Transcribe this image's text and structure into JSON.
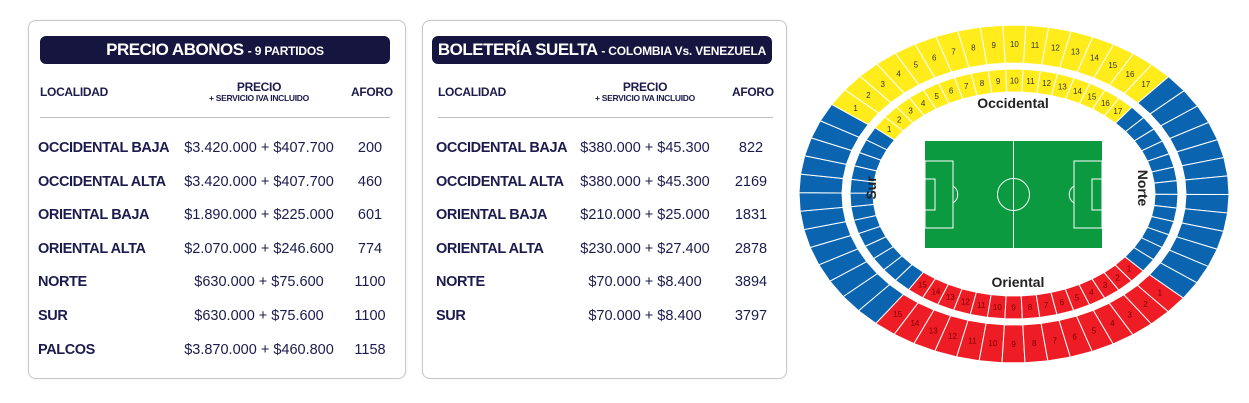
{
  "abonos": {
    "title": "PRECIO ABONOS",
    "subtitle": "- 9 PARTIDOS",
    "headers": {
      "localidad": "LOCALIDAD",
      "precio": "PRECIO",
      "precio_note": "+ SERVICIO IVA INCLUIDO",
      "aforo": "AFORO"
    },
    "rows": [
      {
        "localidad": "OCCIDENTAL BAJA",
        "precio": "$3.420.000",
        "plus": "+",
        "servicio": "$407.700",
        "aforo": "200"
      },
      {
        "localidad": "OCCIDENTAL ALTA",
        "precio": "$3.420.000",
        "plus": "+",
        "servicio": "$407.700",
        "aforo": "460"
      },
      {
        "localidad": "ORIENTAL BAJA",
        "precio": "$1.890.000",
        "plus": "+",
        "servicio": "$225.000",
        "aforo": "601"
      },
      {
        "localidad": "ORIENTAL ALTA",
        "precio": "$2.070.000",
        "plus": "+",
        "servicio": "$246.600",
        "aforo": "774"
      },
      {
        "localidad": "NORTE",
        "precio": "$630.000",
        "plus": "+",
        "servicio": "$75.600",
        "aforo": "1100"
      },
      {
        "localidad": "SUR",
        "precio": "$630.000",
        "plus": "+",
        "servicio": "$75.600",
        "aforo": "1100"
      },
      {
        "localidad": "PALCOS",
        "precio": "$3.870.000",
        "plus": "+",
        "servicio": "$460.800",
        "aforo": "1158"
      }
    ]
  },
  "suelta": {
    "title": "BOLETERÍA SUELTA",
    "subtitle": "- COLOMBIA Vs. VENEZUELA",
    "headers": {
      "localidad": "LOCALIDAD",
      "precio": "PRECIO",
      "precio_note": "+ SERVICIO IVA INCLUIDO",
      "aforo": "AFORO"
    },
    "rows": [
      {
        "localidad": "OCCIDENTAL BAJA",
        "precio": "$380.000",
        "plus": "+",
        "servicio": "$45.300",
        "aforo": "822"
      },
      {
        "localidad": "OCCIDENTAL ALTA",
        "precio": "$380.000",
        "plus": "+",
        "servicio": "$45.300",
        "aforo": "2169"
      },
      {
        "localidad": "ORIENTAL BAJA",
        "precio": "$210.000",
        "plus": "+",
        "servicio": "$25.000",
        "aforo": "1831"
      },
      {
        "localidad": "ORIENTAL ALTA",
        "precio": "$230.000",
        "plus": "+",
        "servicio": "$27.400",
        "aforo": "2878"
      },
      {
        "localidad": "NORTE",
        "precio": "$70.000",
        "plus": "+",
        "servicio": "$8.400",
        "aforo": "3894"
      },
      {
        "localidad": "SUR",
        "precio": "$70.000",
        "plus": "+",
        "servicio": "$8.400",
        "aforo": "3797"
      }
    ]
  },
  "stadium": {
    "labels": {
      "occidental": "Occidental",
      "oriental": "Oriental",
      "norte": "Norte",
      "sur": "Sur"
    },
    "colors": {
      "occidental": "#ffec1a",
      "oriental": "#ee1c24",
      "lateral": "#0a64b0",
      "pitch": "#0c9a40"
    },
    "occidental_sections": [
      "1",
      "2",
      "3",
      "4",
      "5",
      "6",
      "7",
      "8",
      "9",
      "10",
      "11",
      "12",
      "13",
      "14",
      "15",
      "16",
      "17"
    ],
    "oriental_sections": [
      "15",
      "14",
      "13",
      "12",
      "11",
      "10",
      "9",
      "8",
      "7",
      "6",
      "5",
      "4",
      "3",
      "2",
      "1"
    ]
  }
}
